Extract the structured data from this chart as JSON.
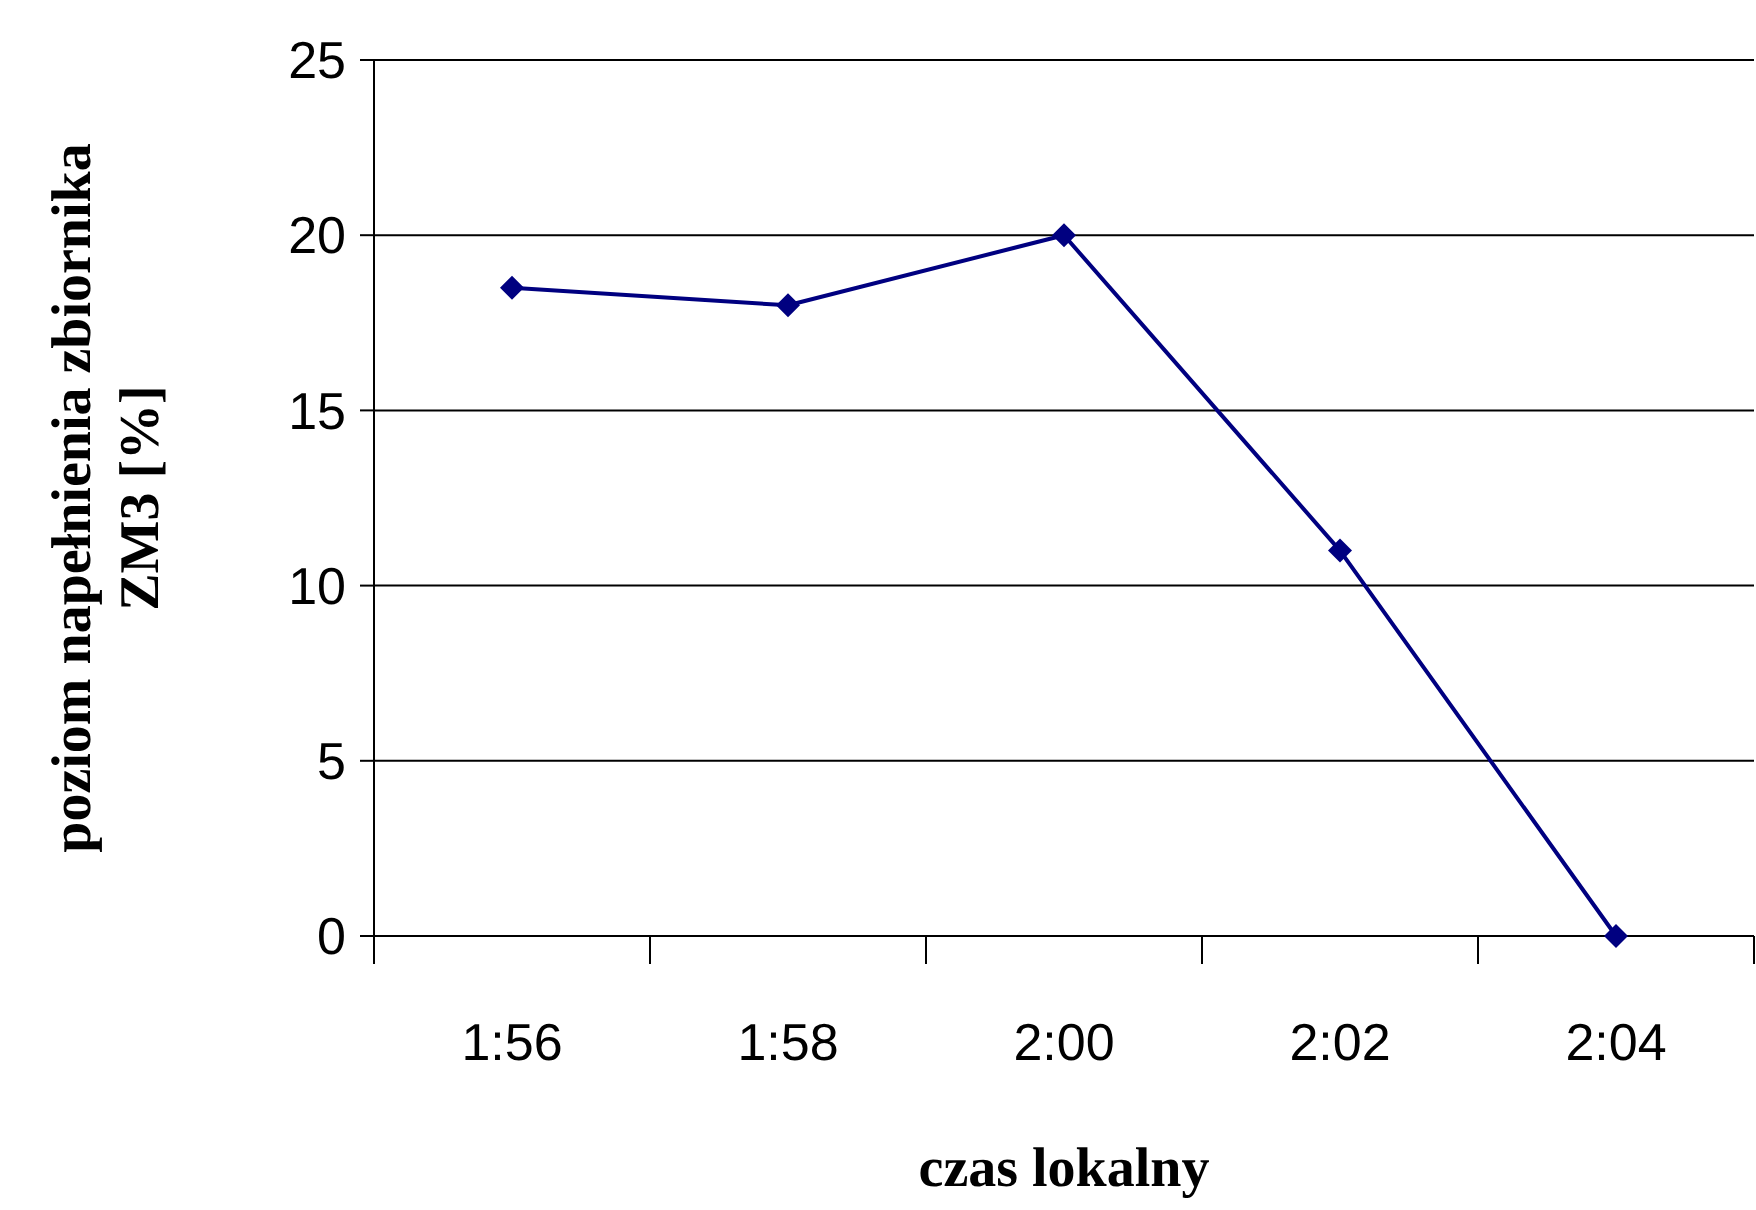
{
  "chart_data": {
    "type": "line",
    "xlabel": "czas lokalny",
    "ylabel": "poziom napełnienia zbiornika ZM3 [%]",
    "categories": [
      "1:56",
      "1:58",
      "2:00",
      "2:02",
      "2:04"
    ],
    "series": [
      {
        "color": "#000080",
        "values": [
          18.5,
          18,
          20,
          11,
          0
        ]
      }
    ],
    "ylim": [
      0,
      25
    ],
    "yticks": [
      0,
      5,
      10,
      15,
      20,
      25
    ],
    "grid": "y",
    "marker": "diamond",
    "line_style": "solid"
  }
}
